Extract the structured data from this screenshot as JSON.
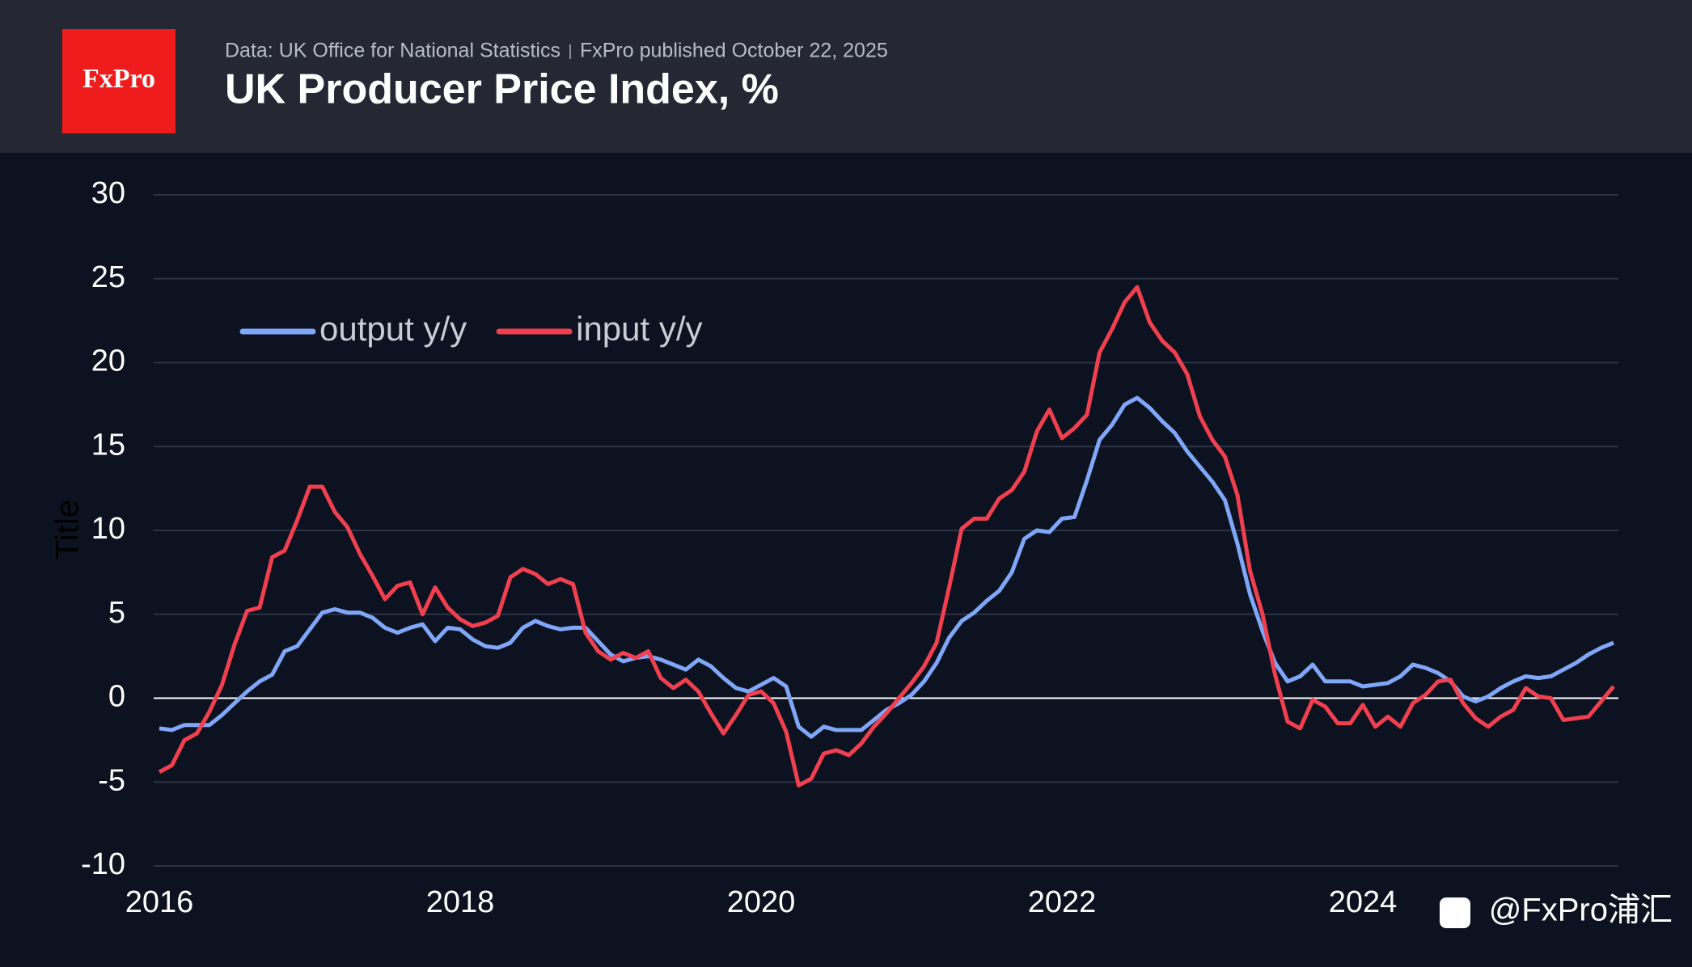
{
  "header": {
    "source": "Data: UK Office for National Statistics",
    "published": "FxPro published October 22, 2025",
    "logo": "FxPro"
  },
  "watermark": "@FxPro浦汇",
  "chart_data": {
    "type": "line",
    "title": "UK Producer Price Index, %",
    "y_label": "Title",
    "categories": [
      "2016",
      null,
      null,
      null,
      null,
      null,
      null,
      null,
      null,
      null,
      null,
      null,
      null,
      null,
      null,
      null,
      null,
      null,
      null,
      null,
      null,
      null,
      null,
      null,
      "2018",
      null,
      null,
      null,
      null,
      null,
      null,
      null,
      null,
      null,
      null,
      null,
      null,
      null,
      null,
      null,
      null,
      null,
      null,
      null,
      null,
      null,
      null,
      null,
      "2020",
      null,
      null,
      null,
      null,
      null,
      null,
      null,
      null,
      null,
      null,
      null,
      null,
      null,
      null,
      null,
      null,
      null,
      null,
      null,
      null,
      null,
      null,
      null,
      "2022",
      null,
      null,
      null,
      null,
      null,
      null,
      null,
      null,
      null,
      null,
      null,
      null,
      null,
      null,
      null,
      null,
      null,
      null,
      null,
      null,
      null,
      null,
      null,
      "2024",
      null,
      null,
      null,
      null,
      null,
      null,
      null,
      null,
      null,
      null,
      null,
      null,
      null,
      null,
      null,
      null,
      null,
      null,
      null,
      null
    ],
    "series": [
      {
        "name": "output y/y",
        "color": "#7fa6f7",
        "values": [
          -1.8,
          -1.9,
          -1.6,
          -1.6,
          -1.6,
          -1.0,
          -0.3,
          0.4,
          1.0,
          1.4,
          2.8,
          3.1,
          4.1,
          5.1,
          5.3,
          5.1,
          5.1,
          4.8,
          4.2,
          3.9,
          4.2,
          4.4,
          3.4,
          4.2,
          4.1,
          3.5,
          3.1,
          3.0,
          3.3,
          4.2,
          4.6,
          4.3,
          4.1,
          4.2,
          4.2,
          3.4,
          2.6,
          2.2,
          2.4,
          2.5,
          2.3,
          2.0,
          1.7,
          2.3,
          1.9,
          1.2,
          0.6,
          0.4,
          0.8,
          1.2,
          0.7,
          -1.7,
          -2.3,
          -1.7,
          -1.9,
          -1.9,
          -1.9,
          -1.3,
          -0.7,
          -0.3,
          0.2,
          1.0,
          2.1,
          3.6,
          4.6,
          5.1,
          5.8,
          6.4,
          7.5,
          9.5,
          10.0,
          9.9,
          10.7,
          10.8,
          13.0,
          15.4,
          16.3,
          17.5,
          17.9,
          17.3,
          16.5,
          15.8,
          14.7,
          13.8,
          12.9,
          11.8,
          9.2,
          6.2,
          4.0,
          2.1,
          1.0,
          1.3,
          2.0,
          1.0,
          1.0,
          1.0,
          0.7,
          0.8,
          0.9,
          1.3,
          2.0,
          1.8,
          1.5,
          1.0,
          0.1,
          -0.2,
          0.1,
          0.6,
          1.0,
          1.3,
          1.2,
          1.3,
          1.7,
          2.1,
          2.6,
          3.0,
          3.3
        ]
      },
      {
        "name": "input y/y",
        "color": "#f04050",
        "values": [
          -4.4,
          -4.0,
          -2.5,
          -2.1,
          -0.8,
          0.8,
          3.2,
          5.2,
          5.4,
          8.4,
          8.8,
          10.6,
          12.6,
          12.6,
          11.1,
          10.2,
          8.6,
          7.3,
          5.9,
          6.7,
          6.9,
          5.0,
          6.6,
          5.4,
          4.7,
          4.3,
          4.5,
          4.9,
          7.2,
          7.7,
          7.4,
          6.8,
          7.1,
          6.8,
          3.9,
          2.8,
          2.3,
          2.7,
          2.4,
          2.8,
          1.2,
          0.6,
          1.1,
          0.4,
          -0.9,
          -2.1,
          -1.0,
          0.2,
          0.4,
          -0.3,
          -2.0,
          -5.2,
          -4.8,
          -3.3,
          -3.1,
          -3.4,
          -2.7,
          -1.7,
          -0.9,
          0.0,
          0.9,
          1.9,
          3.3,
          6.6,
          10.1,
          10.7,
          10.7,
          11.9,
          12.4,
          13.5,
          15.9,
          17.2,
          15.5,
          16.1,
          16.9,
          20.6,
          22.0,
          23.6,
          24.5,
          22.4,
          21.3,
          20.6,
          19.3,
          16.8,
          15.4,
          14.4,
          12.1,
          7.6,
          5.0,
          1.4,
          -1.4,
          -1.8,
          -0.1,
          -0.5,
          -1.5,
          -1.5,
          -0.4,
          -1.7,
          -1.1,
          -1.7,
          -0.3,
          0.2,
          1.0,
          1.1,
          -0.3,
          -1.2,
          -1.7,
          -1.1,
          -0.7,
          0.6,
          0.1,
          0.0,
          -1.3,
          -1.2,
          -1.1,
          -0.2,
          0.7
        ]
      }
    ],
    "ylim": [
      -10,
      30
    ],
    "yticks": [
      -10,
      -5,
      0,
      5,
      10,
      15,
      20,
      25,
      30
    ],
    "grid": true
  }
}
